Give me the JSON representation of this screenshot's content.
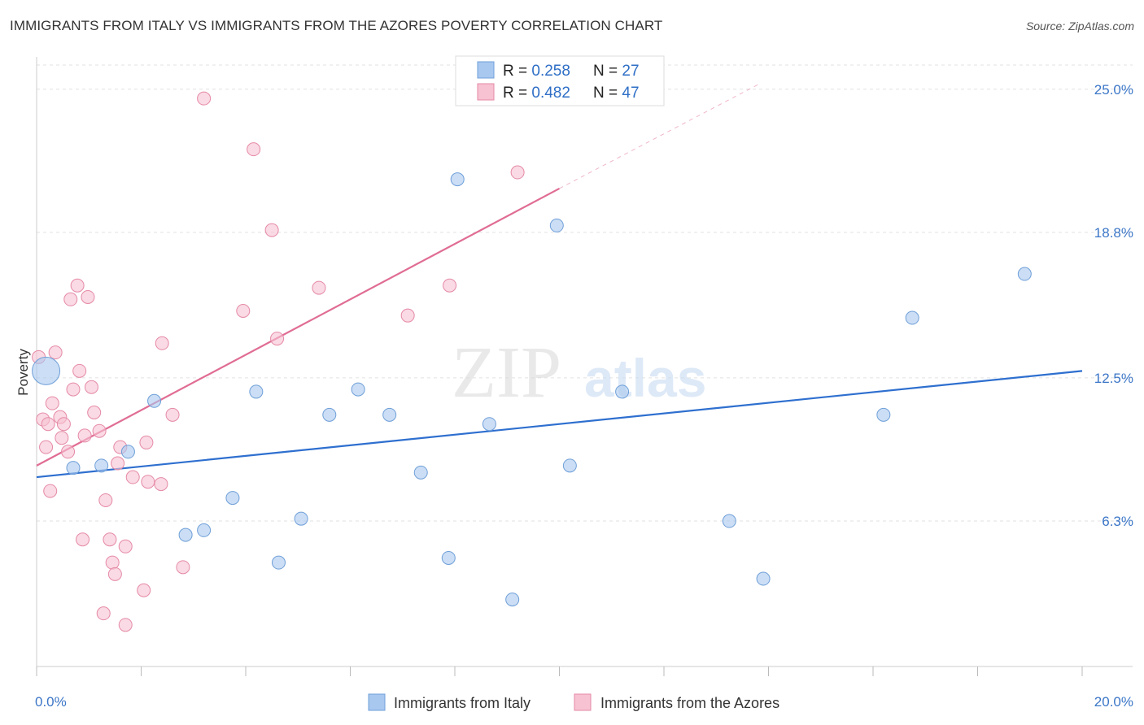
{
  "chart_data": {
    "type": "scatter",
    "title": "IMMIGRANTS FROM ITALY VS IMMIGRANTS FROM THE AZORES POVERTY CORRELATION CHART",
    "source": "Source: ZipAtlas.com",
    "xlabel": "",
    "ylabel": "Poverty",
    "xlim": [
      0,
      20
    ],
    "ylim": [
      0,
      26.4
    ],
    "x_tick_labels": [
      "0.0%",
      "20.0%"
    ],
    "y_ticks": [
      6.3,
      12.5,
      18.8,
      25.0
    ],
    "y_tick_labels": [
      "6.3%",
      "12.5%",
      "18.8%",
      "25.0%"
    ],
    "watermark": "ZIPatlas",
    "legend_stats": [
      {
        "r_label": "R = ",
        "r_value": "0.258",
        "n_label": "N = ",
        "n_value": "27"
      },
      {
        "r_label": "R = ",
        "r_value": "0.482",
        "n_label": "N = ",
        "n_value": "47"
      }
    ],
    "series": [
      {
        "name": "Immigrants from Italy",
        "color": "#a9c8ef",
        "stroke": "#6f9fd8",
        "line_color": "#2e6fcf",
        "trend": {
          "x0": 0,
          "y0": 8.2,
          "x1": 20,
          "y1": 12.8
        },
        "points": [
          {
            "x": 0.18,
            "y": 12.8,
            "big": true
          },
          {
            "x": 0.7,
            "y": 8.6
          },
          {
            "x": 1.24,
            "y": 8.7
          },
          {
            "x": 1.75,
            "y": 9.3
          },
          {
            "x": 2.25,
            "y": 11.5
          },
          {
            "x": 2.85,
            "y": 5.7
          },
          {
            "x": 3.2,
            "y": 5.9
          },
          {
            "x": 3.75,
            "y": 7.3
          },
          {
            "x": 4.2,
            "y": 11.9
          },
          {
            "x": 4.63,
            "y": 4.5
          },
          {
            "x": 5.06,
            "y": 6.4
          },
          {
            "x": 5.6,
            "y": 10.9
          },
          {
            "x": 6.15,
            "y": 12.0
          },
          {
            "x": 6.75,
            "y": 10.9
          },
          {
            "x": 7.35,
            "y": 8.4
          },
          {
            "x": 7.88,
            "y": 4.7
          },
          {
            "x": 8.05,
            "y": 21.1
          },
          {
            "x": 8.66,
            "y": 10.5
          },
          {
            "x": 9.1,
            "y": 2.9
          },
          {
            "x": 9.95,
            "y": 19.1
          },
          {
            "x": 10.2,
            "y": 8.7
          },
          {
            "x": 11.2,
            "y": 11.9
          },
          {
            "x": 13.25,
            "y": 6.3
          },
          {
            "x": 13.9,
            "y": 3.8
          },
          {
            "x": 16.2,
            "y": 10.9
          },
          {
            "x": 16.75,
            "y": 15.1
          },
          {
            "x": 18.9,
            "y": 17.0
          }
        ]
      },
      {
        "name": "Immigrants from the Azores",
        "color": "#f7c2d2",
        "stroke": "#e58aa6",
        "line_color": "#e06d94",
        "trend": {
          "x0": 0,
          "y0": 8.7,
          "x1": 10,
          "y1": 20.7
        },
        "trend_ext": {
          "x0": 10,
          "y0": 20.7,
          "x1": 13.8,
          "y1": 25.2
        },
        "points": [
          {
            "x": 0.04,
            "y": 13.4
          },
          {
            "x": 0.12,
            "y": 10.7
          },
          {
            "x": 0.18,
            "y": 9.5
          },
          {
            "x": 0.22,
            "y": 10.5
          },
          {
            "x": 0.26,
            "y": 7.6
          },
          {
            "x": 0.3,
            "y": 11.4
          },
          {
            "x": 0.36,
            "y": 13.6
          },
          {
            "x": 0.45,
            "y": 10.8
          },
          {
            "x": 0.48,
            "y": 9.9
          },
          {
            "x": 0.52,
            "y": 10.5
          },
          {
            "x": 0.6,
            "y": 9.3
          },
          {
            "x": 0.65,
            "y": 15.9
          },
          {
            "x": 0.7,
            "y": 12.0
          },
          {
            "x": 0.78,
            "y": 16.5
          },
          {
            "x": 0.82,
            "y": 12.8
          },
          {
            "x": 0.88,
            "y": 5.5
          },
          {
            "x": 0.92,
            "y": 10.0
          },
          {
            "x": 0.98,
            "y": 16.0
          },
          {
            "x": 1.05,
            "y": 12.1
          },
          {
            "x": 1.1,
            "y": 11.0
          },
          {
            "x": 1.2,
            "y": 10.2
          },
          {
            "x": 1.28,
            "y": 2.3
          },
          {
            "x": 1.32,
            "y": 7.2
          },
          {
            "x": 1.4,
            "y": 5.5
          },
          {
            "x": 1.45,
            "y": 4.5
          },
          {
            "x": 1.5,
            "y": 4.0
          },
          {
            "x": 1.55,
            "y": 8.8
          },
          {
            "x": 1.6,
            "y": 9.5
          },
          {
            "x": 1.7,
            "y": 5.2
          },
          {
            "x": 1.7,
            "y": 1.8
          },
          {
            "x": 1.84,
            "y": 8.2
          },
          {
            "x": 2.05,
            "y": 3.3
          },
          {
            "x": 2.13,
            "y": 8.0
          },
          {
            "x": 2.1,
            "y": 9.7
          },
          {
            "x": 2.38,
            "y": 7.9
          },
          {
            "x": 2.4,
            "y": 14.0
          },
          {
            "x": 2.6,
            "y": 10.9
          },
          {
            "x": 2.8,
            "y": 4.3
          },
          {
            "x": 3.2,
            "y": 24.6
          },
          {
            "x": 3.95,
            "y": 15.4
          },
          {
            "x": 4.15,
            "y": 22.4
          },
          {
            "x": 4.5,
            "y": 18.9
          },
          {
            "x": 4.6,
            "y": 14.2
          },
          {
            "x": 5.4,
            "y": 16.4
          },
          {
            "x": 7.1,
            "y": 15.2
          },
          {
            "x": 7.9,
            "y": 16.5
          },
          {
            "x": 9.2,
            "y": 21.4
          }
        ]
      }
    ]
  }
}
